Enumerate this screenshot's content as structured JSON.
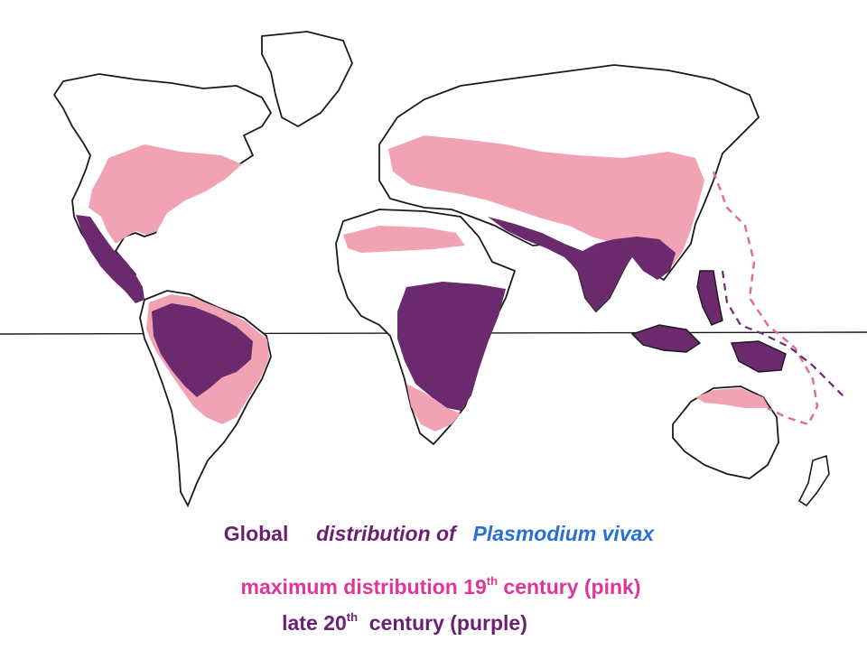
{
  "caption": {
    "word_global": "Global",
    "phrase_distribution": "distribution of",
    "species": "Plasmodium vivax",
    "line2_text": "maximum distribution 19",
    "line2_sup": "th",
    "line2_suffix": " century (pink)",
    "line3_text": "late 20",
    "line3_sup": "th",
    "line3_suffix": "  century (purple)"
  },
  "colors": {
    "pink": "#f1a3b3",
    "purple": "#6b2a6e",
    "outline": "#1a1a1a",
    "title_purple": "#6a1f73",
    "title_blue": "#2a6fd6",
    "subtitle_pink": "#e0359a",
    "subtitle_purple": "#6a1f73"
  },
  "map": {
    "regions_19th_century_pink": [
      "North America east",
      "Mediterranean",
      "Europe",
      "Middle East",
      "China",
      "South America south",
      "Southern Africa",
      "Northern Australia"
    ],
    "regions_20th_century_purple": [
      "Mexico",
      "Central America",
      "Amazon basin",
      "Sub-Saharan Africa",
      "Arabian coast",
      "India",
      "Southeast Asia",
      "Indonesia",
      "New Guinea"
    ]
  }
}
